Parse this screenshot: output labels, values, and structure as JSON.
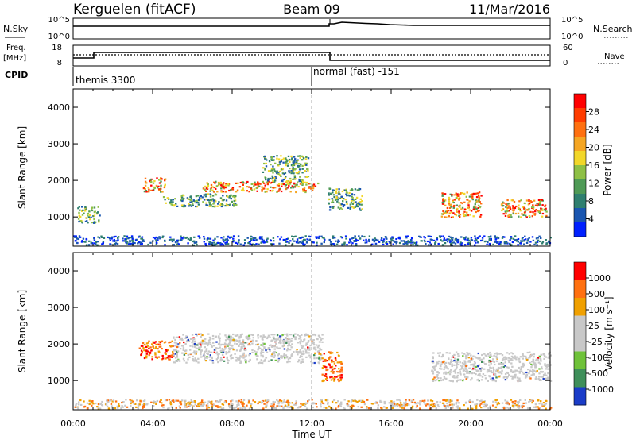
{
  "header": {
    "station": "Kerguelen (fitACF)",
    "beam": "Beam 09",
    "date": "11/Mar/2016"
  },
  "ancillary": {
    "nsky_label": "N.Sky",
    "nsky_ticks": [
      "10^5",
      "10^0"
    ],
    "nsearch_label": "N.Search",
    "nsearch_ticks": [
      "10^5",
      "10^0"
    ],
    "freq_label_1": "Freq.",
    "freq_label_2": "[MHz]",
    "freq_ticks": [
      "18",
      "8"
    ],
    "nave_label": "Nave",
    "nave_ticks": [
      "60",
      "0"
    ],
    "cpid_label": "CPID",
    "cpid_modes": [
      "themis 3300",
      "normal (fast) -151"
    ]
  },
  "chart_data": [
    {
      "type": "heatmap",
      "panel": "power",
      "ylabel": "Slant Range [km]",
      "yticks": [
        "4000",
        "3000",
        "2000",
        "1000"
      ],
      "ylim": [
        200,
        4500
      ],
      "xlim": [
        0,
        24
      ],
      "colorbar_label": "Power [dB]",
      "colorbar_ticks": [
        "28",
        "24",
        "20",
        "16",
        "12",
        "8",
        "4"
      ],
      "colorbar_colors": [
        "#0020ff",
        "#1a56b0",
        "#2f7f6f",
        "#4f9a56",
        "#8ec046",
        "#f2d72a",
        "#f5a623",
        "#ff7010",
        "#ff3c00",
        "#ff0000"
      ],
      "features": [
        {
          "t0": 0.0,
          "t1": 24.0,
          "r0": 250,
          "r1": 500,
          "level": "low"
        },
        {
          "t0": 0.2,
          "t1": 1.3,
          "r0": 850,
          "r1": 1300,
          "level": "mid"
        },
        {
          "t0": 3.5,
          "t1": 4.6,
          "r0": 1700,
          "r1": 2100,
          "level": "high"
        },
        {
          "t0": 4.5,
          "t1": 8.2,
          "r0": 1300,
          "r1": 1650,
          "level": "mid"
        },
        {
          "t0": 6.5,
          "t1": 12.3,
          "r0": 1700,
          "r1": 2000,
          "level": "high"
        },
        {
          "t0": 9.5,
          "t1": 11.8,
          "r0": 2000,
          "r1": 2700,
          "level": "mid"
        },
        {
          "t0": 12.8,
          "t1": 14.5,
          "r0": 1200,
          "r1": 1800,
          "level": "mid"
        },
        {
          "t0": 18.5,
          "t1": 20.5,
          "r0": 1000,
          "r1": 1700,
          "level": "high"
        },
        {
          "t0": 21.5,
          "t1": 23.8,
          "r0": 1000,
          "r1": 1500,
          "level": "high"
        }
      ]
    },
    {
      "type": "heatmap",
      "panel": "velocity",
      "ylabel": "Slant Range [km]",
      "yticks": [
        "4000",
        "3000",
        "2000",
        "1000"
      ],
      "ylim": [
        200,
        4500
      ],
      "xlim": [
        0,
        24
      ],
      "xlabel": "Time UT",
      "xticks": [
        "00:00",
        "04:00",
        "08:00",
        "12:00",
        "16:00",
        "20:00",
        "00:00"
      ],
      "colorbar_label": "Velocity [m s⁻¹]",
      "colorbar_ticks": [
        "1000",
        "500",
        "100",
        "25",
        "-25",
        "-100",
        "-500",
        "-1000"
      ],
      "colorbar_colors": [
        "#1a3cc8",
        "#3f8f5a",
        "#6fc23a",
        "#c8c8c8",
        "#c8c8c8",
        "#f0a000",
        "#ff7010",
        "#ff0000"
      ],
      "features": [
        {
          "t0": 0.0,
          "t1": 24.0,
          "r0": 250,
          "r1": 500,
          "level": "scatter"
        },
        {
          "t0": 3.3,
          "t1": 5.0,
          "r0": 1600,
          "r1": 2100,
          "level": "neg"
        },
        {
          "t0": 5.0,
          "t1": 12.5,
          "r0": 1500,
          "r1": 2300,
          "level": "grey"
        },
        {
          "t0": 12.5,
          "t1": 13.5,
          "r0": 1000,
          "r1": 1800,
          "level": "neg"
        },
        {
          "t0": 18.0,
          "t1": 24.0,
          "r0": 1000,
          "r1": 1800,
          "level": "grey"
        }
      ]
    }
  ]
}
